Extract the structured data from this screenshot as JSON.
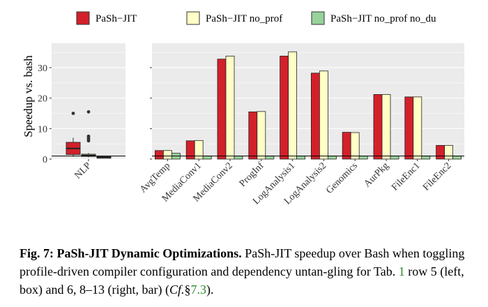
{
  "colors": {
    "jit": "#d3202a",
    "no_prof": "#ffffc6",
    "no_prof_no_du": "#98d39b",
    "panel_bg": "#ebebeb",
    "grid": "#ffffff",
    "ref_green": "#2a8a2a"
  },
  "chart_data": [
    {
      "type": "box",
      "ylabel": "Speedup vs. bash",
      "ylim": [
        0,
        38
      ],
      "yticks": [
        0,
        10,
        20,
        30
      ],
      "reference_line": 1,
      "categories": [
        "NLP"
      ],
      "legend": {
        "position": "top",
        "entries": [
          "PaSh−JIT",
          "PaSh−JIT no_prof",
          "PaSh−JIT no_prof no_du"
        ]
      },
      "series": [
        {
          "name": "PaSh−JIT",
          "q1": 1.5,
          "median": 3.5,
          "q3": 5.5,
          "whisker_low": 0.8,
          "whisker_high": 7.0,
          "outliers": [
            15.0
          ]
        },
        {
          "name": "PaSh−JIT no_prof",
          "q1": 0.9,
          "median": 1.2,
          "q3": 1.6,
          "whisker_low": 0.6,
          "whisker_high": 2.0,
          "outliers": [
            6.0,
            6.5,
            7.0,
            7.5,
            15.5
          ]
        },
        {
          "name": "PaSh−JIT no_prof no_du",
          "q1": 0.3,
          "median": 0.5,
          "q3": 0.8,
          "whisker_low": 0.2,
          "whisker_high": 0.9,
          "outliers": []
        }
      ]
    },
    {
      "type": "bar",
      "ylim": [
        0,
        38
      ],
      "yticks": [
        0,
        10,
        20,
        30
      ],
      "reference_line": 1,
      "categories": [
        "AvgTemp",
        "MediaConv1",
        "MediaConv2",
        "ProgInf",
        "LogAnalysis1",
        "LogAnalysis2",
        "Genomics",
        "AurPkg",
        "FileEnc1",
        "FileEnc2"
      ],
      "series": [
        {
          "name": "PaSh−JIT",
          "values": [
            2.8,
            6.0,
            32.8,
            15.5,
            33.8,
            28.2,
            8.8,
            21.2,
            20.4,
            4.5
          ]
        },
        {
          "name": "PaSh−JIT no_prof",
          "values": [
            2.8,
            6.1,
            33.8,
            15.6,
            35.2,
            28.9,
            8.7,
            21.2,
            20.4,
            4.5
          ]
        },
        {
          "name": "PaSh−JIT no_prof no_du",
          "values": [
            1.9,
            1.0,
            1.0,
            1.0,
            1.0,
            1.0,
            1.0,
            1.0,
            1.0,
            1.0
          ]
        }
      ]
    }
  ],
  "caption": {
    "label": "Fig. 7:",
    "title": "PaSh-JIT Dynamic Optimizations.",
    "t1": " PaSh-JIT speedup over Bash when toggling profile-driven compiler configuration and dependency untan-gling for Tab. ",
    "ref1": "1",
    "t2": " row 5 (left, box) and 6, 8–13 (right, bar) (",
    "cf": "Cf.",
    "t3": "§",
    "ref2": "7.3",
    "t4": ")."
  }
}
